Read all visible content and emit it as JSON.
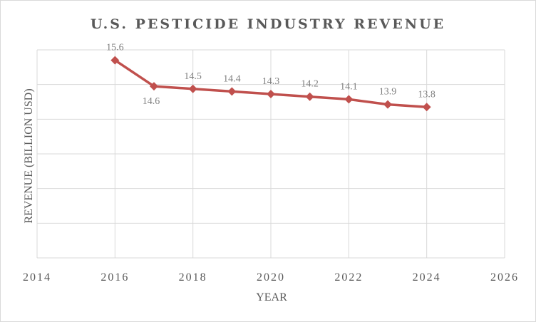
{
  "chart_data": {
    "type": "line",
    "title": "U.S. PESTICIDE INDUSTRY REVENUE",
    "xlabel": "YEAR",
    "ylabel": "REVENUE (BILLION USD)",
    "xlim": [
      2014,
      2026
    ],
    "ylim": [
      8,
      16
    ],
    "x_ticks": [
      2014,
      2016,
      2018,
      2020,
      2022,
      2024,
      2026
    ],
    "y_ticks_labeled": false,
    "grid": "both",
    "legend": "none",
    "series": [
      {
        "x": [
          2016,
          2017,
          2018,
          2019,
          2020,
          2021,
          2022,
          2023,
          2024
        ],
        "values": [
          15.6,
          14.6,
          14.5,
          14.4,
          14.3,
          14.2,
          14.1,
          13.9,
          13.8
        ],
        "color": "#c0504d",
        "marker": "diamond"
      }
    ]
  }
}
